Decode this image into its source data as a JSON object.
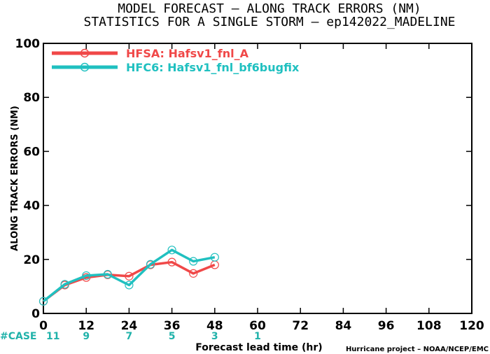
{
  "chart_data": {
    "type": "line",
    "title": "MODEL FORECAST – ALONG TRACK ERRORS (NM)",
    "subtitle": "STATISTICS FOR A SINGLE STORM – ep142022_MADELINE",
    "xlabel": "Forecast lead time (hr)",
    "ylabel": "ALONG TRACK ERRORS (NM)",
    "xlim": [
      0,
      120
    ],
    "ylim": [
      0,
      100
    ],
    "x_ticks": [
      0,
      12,
      24,
      36,
      48,
      60,
      72,
      84,
      96,
      108,
      120
    ],
    "y_ticks": [
      0,
      20,
      40,
      60,
      80,
      100
    ],
    "grid": false,
    "legend_position": "top-left",
    "series": [
      {
        "name": "HFSA: Hafsv1_fnl_A",
        "color": "#f04848",
        "x": [
          0,
          6,
          12,
          18,
          24,
          30,
          36,
          42,
          48
        ],
        "y": [
          4.5,
          10.5,
          13.3,
          14.3,
          13.8,
          18.0,
          19.0,
          14.8,
          18.0
        ]
      },
      {
        "name": "HFC6: Hafsv1_fnl_bf6bugfix",
        "color": "#20c0c0",
        "x": [
          0,
          6,
          12,
          18,
          24,
          30,
          36,
          42,
          48
        ],
        "y": [
          4.5,
          10.8,
          14.0,
          14.5,
          10.5,
          18.2,
          23.5,
          19.3,
          20.8
        ]
      }
    ],
    "case_counts": {
      "label": "#CASE",
      "x": [
        0,
        12,
        24,
        36,
        48,
        60
      ],
      "values": [
        "11",
        "9",
        "7",
        "5",
        "3",
        "1"
      ]
    },
    "credit": "Hurricane project – NOAA/NCEP/EMC"
  }
}
